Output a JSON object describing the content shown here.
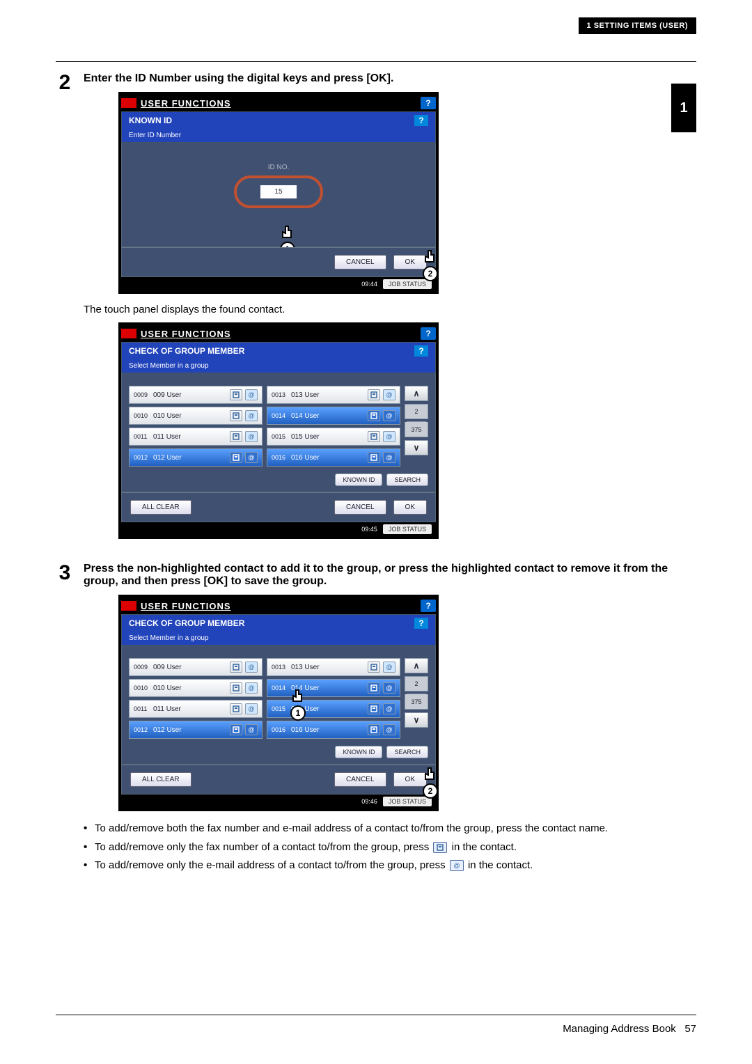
{
  "header_tag": "1 SETTING ITEMS (USER)",
  "side_tab": "1",
  "step2": {
    "num": "2",
    "title": "Enter the ID Number using the digital keys and press [OK].",
    "screen": {
      "title": "USER FUNCTIONS",
      "subbar": "KNOWN ID",
      "instruct": "Enter ID Number",
      "id_label": "ID NO.",
      "id_value": "15",
      "btn_cancel": "CANCEL",
      "btn_ok": "OK",
      "pointer1": "1",
      "pointer2": "2",
      "time": "09:44",
      "status": "JOB STATUS"
    },
    "desc": "The touch panel displays the found contact.",
    "screen_b": {
      "title": "USER FUNCTIONS",
      "subbar": "CHECK OF GROUP MEMBER",
      "instruct": "Select Member in a group",
      "rows_left": [
        {
          "id": "0009",
          "name": "009 User",
          "hl": false
        },
        {
          "id": "0010",
          "name": "010 User",
          "hl": false
        },
        {
          "id": "0011",
          "name": "011 User",
          "hl": false
        },
        {
          "id": "0012",
          "name": "012 User",
          "hl": true
        }
      ],
      "rows_right": [
        {
          "id": "0013",
          "name": "013 User",
          "hl": false
        },
        {
          "id": "0014",
          "name": "014 User",
          "hl": true
        },
        {
          "id": "0015",
          "name": "015 User",
          "hl": false
        },
        {
          "id": "0016",
          "name": "016 User",
          "hl": true
        }
      ],
      "page_cur": "2",
      "page_total": "375",
      "known_id": "KNOWN ID",
      "search": "SEARCH",
      "all_clear": "ALL CLEAR",
      "cancel": "CANCEL",
      "ok": "OK",
      "time": "09:45",
      "status": "JOB STATUS"
    }
  },
  "step3": {
    "num": "3",
    "title": "Press the non-highlighted contact to add it to the group, or press the highlighted contact to remove it from the group, and then press [OK] to save the group.",
    "screen": {
      "title": "USER FUNCTIONS",
      "subbar": "CHECK OF GROUP MEMBER",
      "instruct": "Select Member in a group",
      "rows_left": [
        {
          "id": "0009",
          "name": "009 User",
          "hl": false
        },
        {
          "id": "0010",
          "name": "010 User",
          "hl": false
        },
        {
          "id": "0011",
          "name": "011 User",
          "hl": false
        },
        {
          "id": "0012",
          "name": "012 User",
          "hl": true
        }
      ],
      "rows_right": [
        {
          "id": "0013",
          "name": "013 User",
          "hl": false
        },
        {
          "id": "0014",
          "name": "014 User",
          "hl": true
        },
        {
          "id": "0015",
          "name": "015 User",
          "hl": true
        },
        {
          "id": "0016",
          "name": "016 User",
          "hl": true
        }
      ],
      "page_cur": "2",
      "page_total": "375",
      "known_id": "KNOWN ID",
      "search": "SEARCH",
      "all_clear": "ALL CLEAR",
      "cancel": "CANCEL",
      "ok": "OK",
      "pointer1": "1",
      "pointer2": "2",
      "time": "09:46",
      "status": "JOB STATUS"
    },
    "bullets": [
      "To add/remove both the fax number and e-mail address of a contact to/from the group, press the contact name.",
      "To add/remove only the fax number of a contact to/from the group, press ",
      "To add/remove only the e-mail address of a contact to/from the group, press "
    ],
    "bullet_tail": " in the contact."
  },
  "footer": {
    "section": "Managing Address Book",
    "page": "57"
  }
}
